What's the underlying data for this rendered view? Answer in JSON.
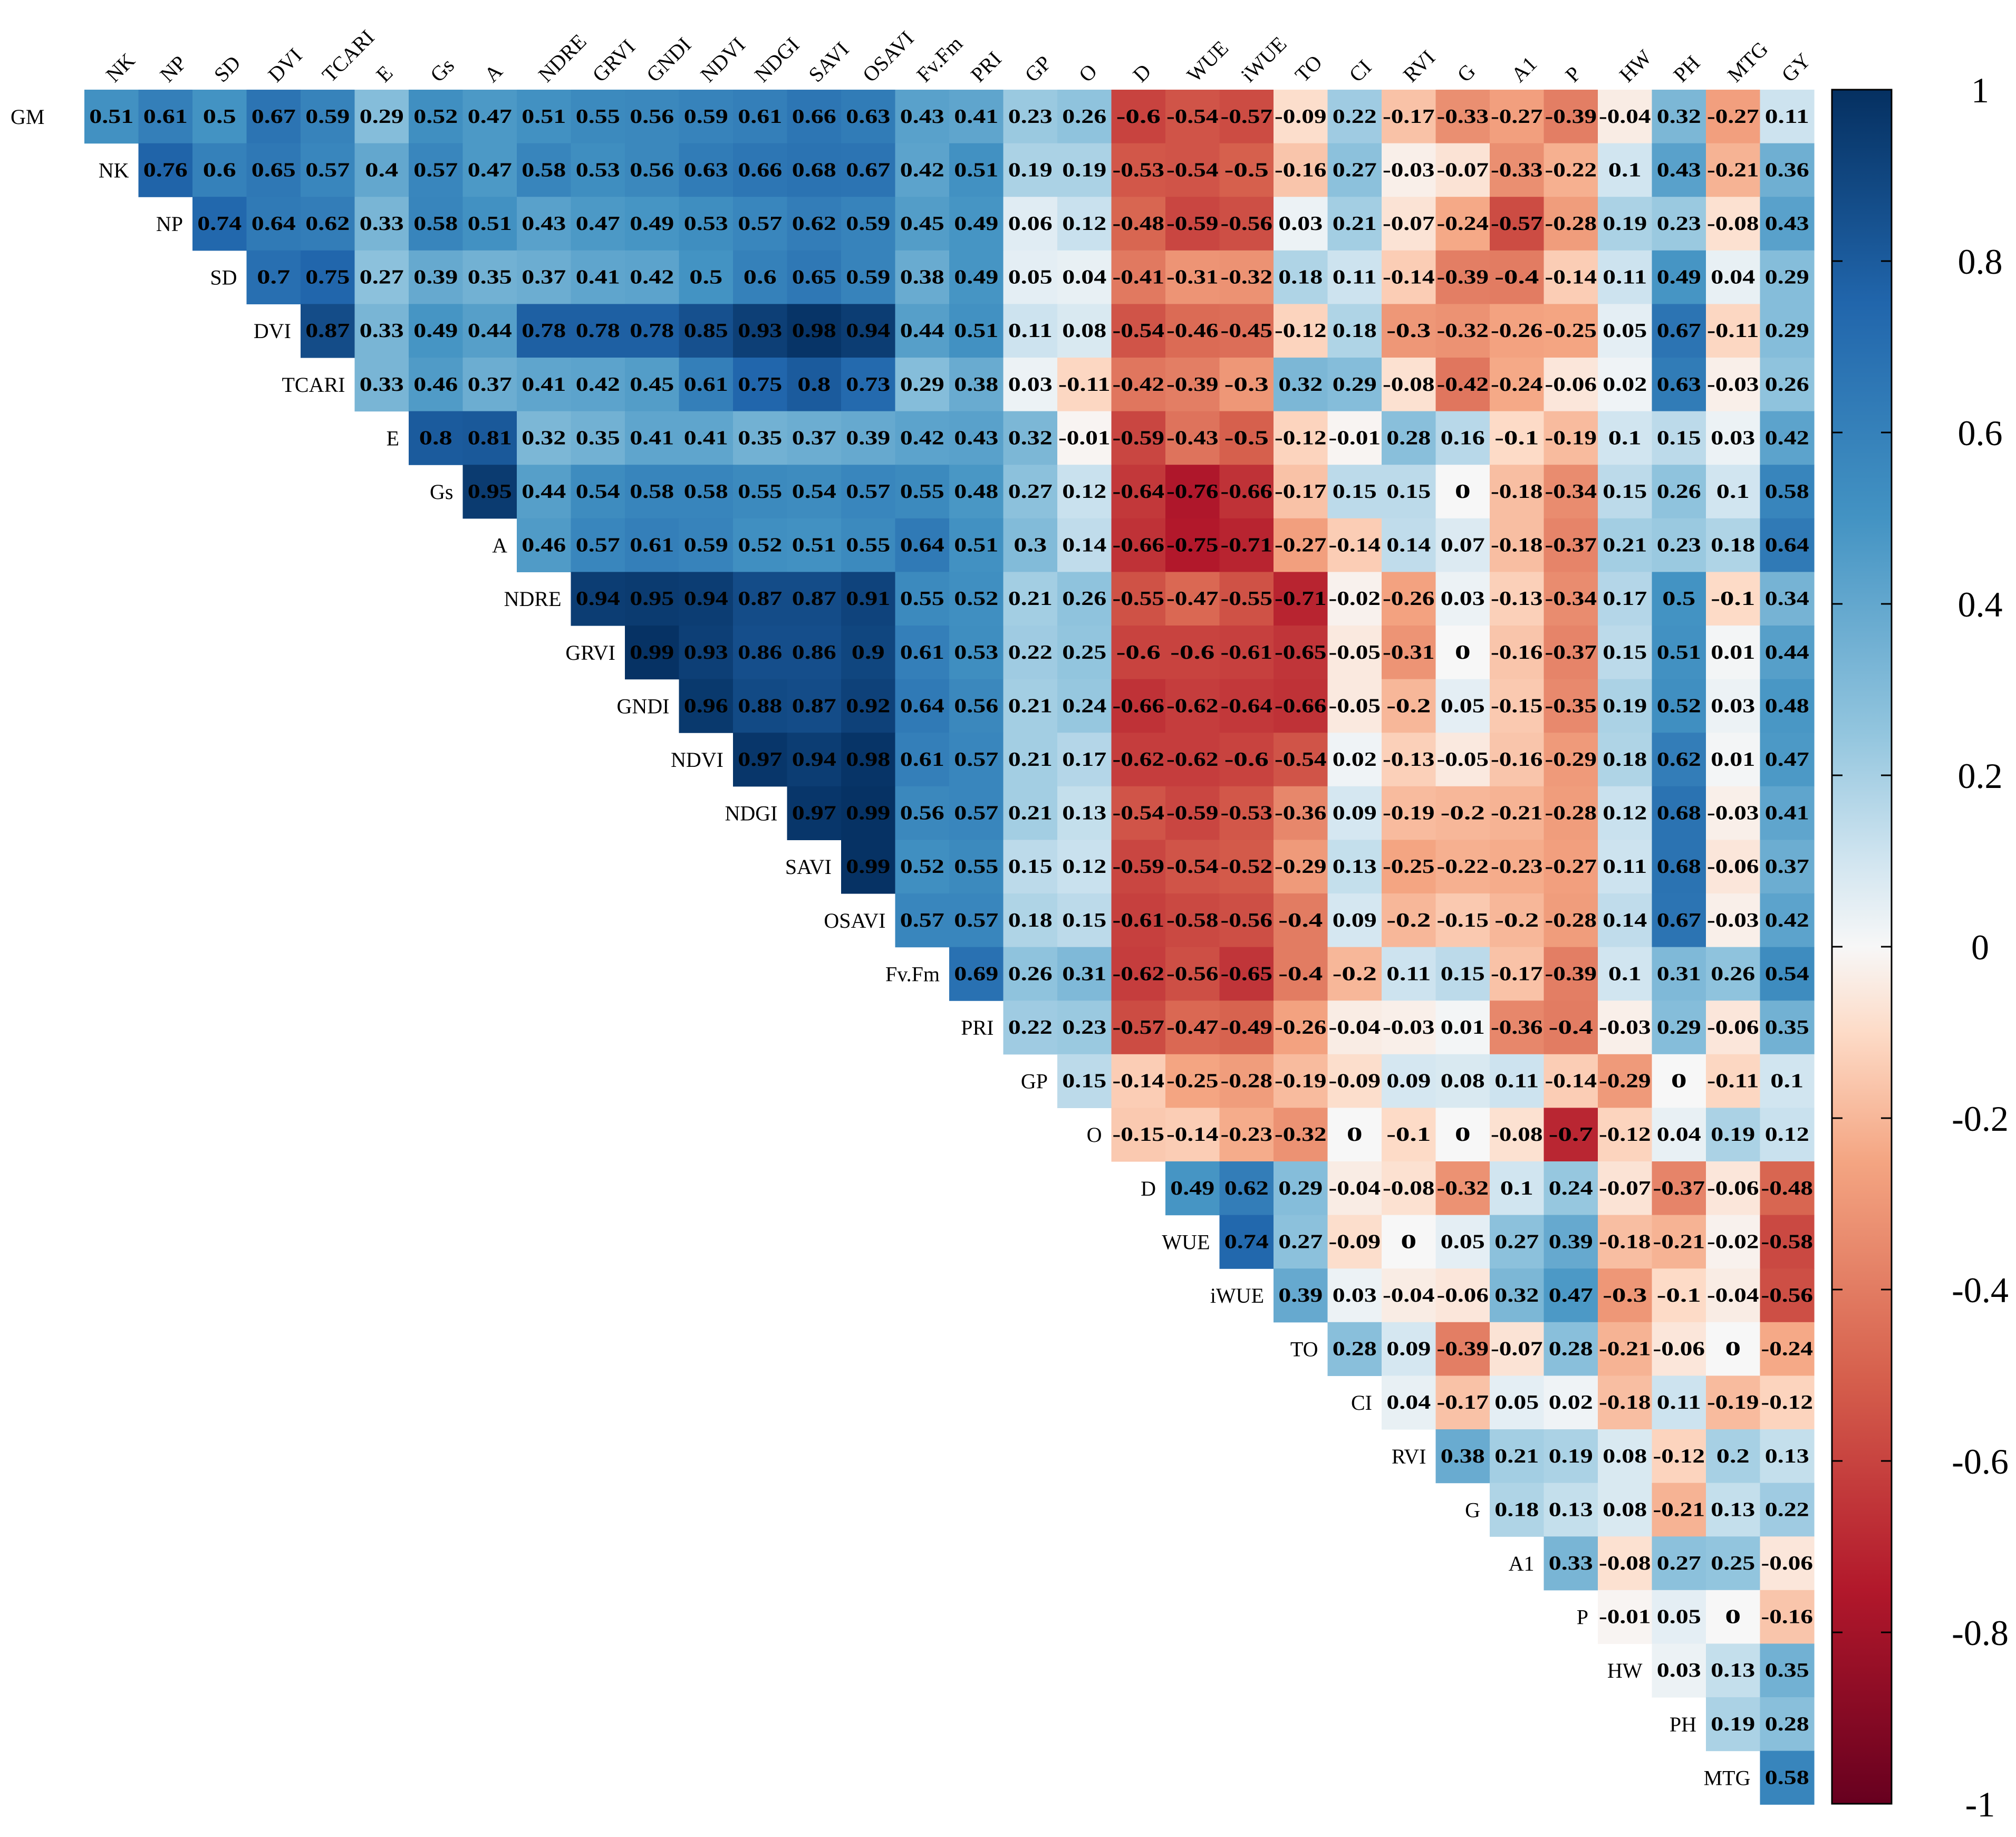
{
  "chart_data": {
    "type": "heatmap",
    "title": "",
    "variables": [
      "GM",
      "NK",
      "NP",
      "SD",
      "DVI",
      "TCARI",
      "E",
      "Gs",
      "A",
      "NDRE",
      "GRVI",
      "GNDI",
      "NDVI",
      "NDGI",
      "SAVI",
      "OSAVI",
      "Fv.Fm",
      "PRI",
      "GP",
      "O",
      "D",
      "WUE",
      "iWUE",
      "TO",
      "CI",
      "RVI",
      "G",
      "A1",
      "P",
      "HW",
      "PH",
      "MTG",
      "GY"
    ],
    "column_labels": [
      "NK",
      "NP",
      "SD",
      "DVI",
      "TCARI",
      "E",
      "Gs",
      "A",
      "NDRE",
      "GRVI",
      "GNDI",
      "NDVI",
      "NDGI",
      "SAVI",
      "OSAVI",
      "Fv.Fm",
      "PRI",
      "GP",
      "O",
      "D",
      "WUE",
      "iWUE",
      "TO",
      "CI",
      "RVI",
      "G",
      "A1",
      "P",
      "HW",
      "PH",
      "MTG",
      "GY"
    ],
    "row_labels": [
      "GM",
      "NK",
      "NP",
      "SD",
      "DVI",
      "TCARI",
      "E",
      "Gs",
      "A",
      "NDRE",
      "GRVI",
      "GNDI",
      "NDVI",
      "NDGI",
      "SAVI",
      "OSAVI",
      "Fv.Fm",
      "PRI",
      "GP",
      "O",
      "D",
      "WUE",
      "iWUE",
      "TO",
      "CI",
      "RVI",
      "G",
      "A1",
      "P",
      "HW",
      "PH",
      "MTG"
    ],
    "rows": [
      [
        "0.51",
        "0.61",
        "0.5",
        "0.67",
        "0.59",
        "0.29",
        "0.52",
        "0.47",
        "0.51",
        "0.55",
        "0.56",
        "0.59",
        "0.61",
        "0.66",
        "0.63",
        "0.43",
        "0.41",
        "0.23",
        "0.26",
        "-0.6",
        "-0.54",
        "-0.57",
        "-0.09",
        "0.22",
        "-0.17",
        "-0.33",
        "-0.27",
        "-0.39",
        "-0.04",
        "0.32",
        "-0.27",
        "0.11"
      ],
      [
        "0.76",
        "0.6",
        "0.65",
        "0.57",
        "0.4",
        "0.57",
        "0.47",
        "0.58",
        "0.53",
        "0.56",
        "0.63",
        "0.66",
        "0.68",
        "0.67",
        "0.42",
        "0.51",
        "0.19",
        "0.19",
        "-0.53",
        "-0.54",
        "-0.5",
        "-0.16",
        "0.27",
        "-0.03",
        "-0.07",
        "-0.33",
        "-0.22",
        "0.1",
        "0.43",
        "-0.21",
        "0.36"
      ],
      [
        "0.74",
        "0.64",
        "0.62",
        "0.33",
        "0.58",
        "0.51",
        "0.43",
        "0.47",
        "0.49",
        "0.53",
        "0.57",
        "0.62",
        "0.59",
        "0.45",
        "0.49",
        "0.06",
        "0.12",
        "-0.48",
        "-0.59",
        "-0.56",
        "0.03",
        "0.21",
        "-0.07",
        "-0.24",
        "-0.57",
        "-0.28",
        "0.19",
        "0.23",
        "-0.08",
        "0.43"
      ],
      [
        "0.7",
        "0.75",
        "0.27",
        "0.39",
        "0.35",
        "0.37",
        "0.41",
        "0.42",
        "0.5",
        "0.6",
        "0.65",
        "0.59",
        "0.38",
        "0.49",
        "0.05",
        "0.04",
        "-0.41",
        "-0.31",
        "-0.32",
        "0.18",
        "0.11",
        "-0.14",
        "-0.39",
        "-0.4",
        "-0.14",
        "0.11",
        "0.49",
        "0.04",
        "0.29"
      ],
      [
        "0.87",
        "0.33",
        "0.49",
        "0.44",
        "0.78",
        "0.78",
        "0.78",
        "0.85",
        "0.93",
        "0.98",
        "0.94",
        "0.44",
        "0.51",
        "0.11",
        "0.08",
        "-0.54",
        "-0.46",
        "-0.45",
        "-0.12",
        "0.18",
        "-0.3",
        "-0.32",
        "-0.26",
        "-0.25",
        "0.05",
        "0.67",
        "-0.11",
        "0.29"
      ],
      [
        "0.33",
        "0.46",
        "0.37",
        "0.41",
        "0.42",
        "0.45",
        "0.61",
        "0.75",
        "0.8",
        "0.73",
        "0.29",
        "0.38",
        "0.03",
        "-0.11",
        "-0.42",
        "-0.39",
        "-0.3",
        "0.32",
        "0.29",
        "-0.08",
        "-0.42",
        "-0.24",
        "-0.06",
        "0.02",
        "0.63",
        "-0.03",
        "0.26"
      ],
      [
        "0.8",
        "0.81",
        "0.32",
        "0.35",
        "0.41",
        "0.41",
        "0.35",
        "0.37",
        "0.39",
        "0.42",
        "0.43",
        "0.32",
        "-0.01",
        "-0.59",
        "-0.43",
        "-0.5",
        "-0.12",
        "-0.01",
        "0.28",
        "0.16",
        "-0.1",
        "-0.19",
        "0.1",
        "0.15",
        "0.03",
        "0.42"
      ],
      [
        "0.95",
        "0.44",
        "0.54",
        "0.58",
        "0.58",
        "0.55",
        "0.54",
        "0.57",
        "0.55",
        "0.48",
        "0.27",
        "0.12",
        "-0.64",
        "-0.76",
        "-0.66",
        "-0.17",
        "0.15",
        "0.15",
        "0",
        "-0.18",
        "-0.34",
        "0.15",
        "0.26",
        "0.1",
        "0.58"
      ],
      [
        "0.46",
        "0.57",
        "0.61",
        "0.59",
        "0.52",
        "0.51",
        "0.55",
        "0.64",
        "0.51",
        "0.3",
        "0.14",
        "-0.66",
        "-0.75",
        "-0.71",
        "-0.27",
        "-0.14",
        "0.14",
        "0.07",
        "-0.18",
        "-0.37",
        "0.21",
        "0.23",
        "0.18",
        "0.64"
      ],
      [
        "0.94",
        "0.95",
        "0.94",
        "0.87",
        "0.87",
        "0.91",
        "0.55",
        "0.52",
        "0.21",
        "0.26",
        "-0.55",
        "-0.47",
        "-0.55",
        "-0.71",
        "-0.02",
        "-0.26",
        "0.03",
        "-0.13",
        "-0.34",
        "0.17",
        "0.5",
        "-0.1",
        "0.34"
      ],
      [
        "0.99",
        "0.93",
        "0.86",
        "0.86",
        "0.9",
        "0.61",
        "0.53",
        "0.22",
        "0.25",
        "-0.6",
        "-0.6",
        "-0.61",
        "-0.65",
        "-0.05",
        "-0.31",
        "0",
        "-0.16",
        "-0.37",
        "0.15",
        "0.51",
        "0.01",
        "0.44"
      ],
      [
        "0.96",
        "0.88",
        "0.87",
        "0.92",
        "0.64",
        "0.56",
        "0.21",
        "0.24",
        "-0.66",
        "-0.62",
        "-0.64",
        "-0.66",
        "-0.05",
        "-0.2",
        "0.05",
        "-0.15",
        "-0.35",
        "0.19",
        "0.52",
        "0.03",
        "0.48"
      ],
      [
        "0.97",
        "0.94",
        "0.98",
        "0.61",
        "0.57",
        "0.21",
        "0.17",
        "-0.62",
        "-0.62",
        "-0.6",
        "-0.54",
        "0.02",
        "-0.13",
        "-0.05",
        "-0.16",
        "-0.29",
        "0.18",
        "0.62",
        "0.01",
        "0.47"
      ],
      [
        "0.97",
        "0.99",
        "0.56",
        "0.57",
        "0.21",
        "0.13",
        "-0.54",
        "-0.59",
        "-0.53",
        "-0.36",
        "0.09",
        "-0.19",
        "-0.2",
        "-0.21",
        "-0.28",
        "0.12",
        "0.68",
        "-0.03",
        "0.41"
      ],
      [
        "0.99",
        "0.52",
        "0.55",
        "0.15",
        "0.12",
        "-0.59",
        "-0.54",
        "-0.52",
        "-0.29",
        "0.13",
        "-0.25",
        "-0.22",
        "-0.23",
        "-0.27",
        "0.11",
        "0.68",
        "-0.06",
        "0.37"
      ],
      [
        "0.57",
        "0.57",
        "0.18",
        "0.15",
        "-0.61",
        "-0.58",
        "-0.56",
        "-0.4",
        "0.09",
        "-0.2",
        "-0.15",
        "-0.2",
        "-0.28",
        "0.14",
        "0.67",
        "-0.03",
        "0.42"
      ],
      [
        "0.69",
        "0.26",
        "0.31",
        "-0.62",
        "-0.56",
        "-0.65",
        "-0.4",
        "-0.2",
        "0.11",
        "0.15",
        "-0.17",
        "-0.39",
        "0.1",
        "0.31",
        "0.26",
        "0.54"
      ],
      [
        "0.22",
        "0.23",
        "-0.57",
        "-0.47",
        "-0.49",
        "-0.26",
        "-0.04",
        "-0.03",
        "0.01",
        "-0.36",
        "-0.4",
        "-0.03",
        "0.29",
        "-0.06",
        "0.35"
      ],
      [
        "0.15",
        "-0.14",
        "-0.25",
        "-0.28",
        "-0.19",
        "-0.09",
        "0.09",
        "0.08",
        "0.11",
        "-0.14",
        "-0.29",
        "0",
        "-0.11",
        "0.1"
      ],
      [
        "-0.15",
        "-0.14",
        "-0.23",
        "-0.32",
        "0",
        "-0.1",
        "0",
        "-0.08",
        "-0.7",
        "-0.12",
        "0.04",
        "0.19",
        "0.12"
      ],
      [
        "0.49",
        "0.62",
        "0.29",
        "-0.04",
        "-0.08",
        "-0.32",
        "0.1",
        "0.24",
        "-0.07",
        "-0.37",
        "-0.06",
        "-0.48"
      ],
      [
        "0.74",
        "0.27",
        "-0.09",
        "0",
        "0.05",
        "0.27",
        "0.39",
        "-0.18",
        "-0.21",
        "-0.02",
        "-0.58"
      ],
      [
        "0.39",
        "0.03",
        "-0.04",
        "-0.06",
        "0.32",
        "0.47",
        "-0.3",
        "-0.1",
        "-0.04",
        "-0.56"
      ],
      [
        "0.28",
        "0.09",
        "-0.39",
        "-0.07",
        "0.28",
        "-0.21",
        "-0.06",
        "0",
        "-0.24"
      ],
      [
        "0.04",
        "-0.17",
        "0.05",
        "0.02",
        "-0.18",
        "0.11",
        "-0.19",
        "-0.12"
      ],
      [
        "0.38",
        "0.21",
        "0.19",
        "0.08",
        "-0.12",
        "0.2",
        "0.13"
      ],
      [
        "0.18",
        "0.13",
        "0.08",
        "-0.21",
        "0.13",
        "0.22"
      ],
      [
        "0.33",
        "-0.08",
        "0.27",
        "0.25",
        "-0.06"
      ],
      [
        "-0.01",
        "0.05",
        "0",
        "-0.16"
      ],
      [
        "0.03",
        "0.13",
        "0.35"
      ],
      [
        "0.19",
        "0.28"
      ],
      [
        "0.58"
      ]
    ],
    "color_scale": {
      "range": [
        -1,
        1
      ],
      "ticks": [
        "1",
        "0.8",
        "0.6",
        "0.4",
        "0.2",
        "0",
        "-0.2",
        "-0.4",
        "-0.6",
        "-0.8",
        "-1"
      ],
      "tick_values": [
        1,
        0.8,
        0.6,
        0.4,
        0.2,
        0,
        -0.2,
        -0.4,
        -0.6,
        -0.8,
        -1
      ],
      "stops": [
        [
          -1,
          "#67001f"
        ],
        [
          -0.75,
          "#b2182b"
        ],
        [
          -0.5,
          "#d6604d"
        ],
        [
          -0.25,
          "#f4a582"
        ],
        [
          -0.1,
          "#fddbc7"
        ],
        [
          0,
          "#f7f7f7"
        ],
        [
          0.1,
          "#d1e5f0"
        ],
        [
          0.25,
          "#92c5de"
        ],
        [
          0.5,
          "#4393c3"
        ],
        [
          0.75,
          "#2166ac"
        ],
        [
          1,
          "#053061"
        ]
      ]
    },
    "legend": "right"
  }
}
